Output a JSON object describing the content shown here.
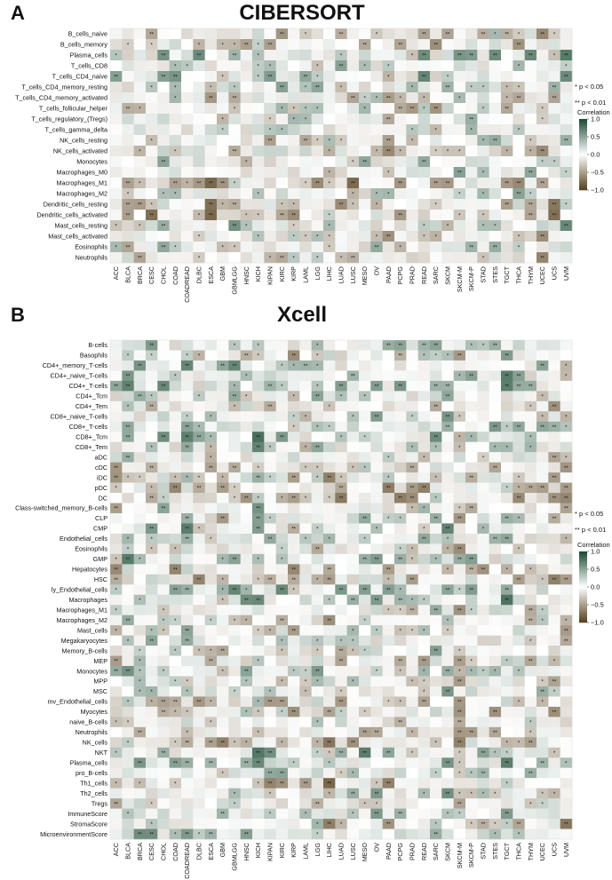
{
  "chart_data": [
    {
      "type": "heatmap",
      "panel": "A",
      "title": "CIBERSORT",
      "legend_title": "Correlation",
      "legend_ticks": [
        "1.0",
        "0.5",
        "0.0",
        "−0.5",
        "−1.0"
      ],
      "color_range": [
        -1.0,
        1.0
      ],
      "colors": {
        "positive": "#1f4d36",
        "neutral": "#ffffff",
        "negative": "#5a4422"
      },
      "notes": [
        "* p < 0.05",
        "** p < 0.01"
      ],
      "rows": [
        "B_cells_naive",
        "B_cells_memory",
        "Plasma_cells",
        "T_cells_CD8",
        "T_cells_CD4_naive",
        "T_cells_CD4_memory_resting",
        "T_cells_CD4_memory_activated",
        "T_cells_follicular_helper",
        "T_cells_regulatory_(Tregs)",
        "T_cells_gamma_delta",
        "NK_cells_resting",
        "NK_cells_activated",
        "Monocytes",
        "Macrophages_M0",
        "Macrophages_M1",
        "Macrophages_M2",
        "Dendritic_cells_resting",
        "Dendritic_cells_activated",
        "Mast_cells_resting",
        "Mast_cells_activated",
        "Eosinophils",
        "Neutrophils"
      ],
      "columns": [
        "ACC",
        "BLCA",
        "BRCA",
        "CESC",
        "CHOL",
        "COAD",
        "COADREAD",
        "DLBC",
        "ESCA",
        "GBM",
        "GBMLGG",
        "HNSC",
        "KICH",
        "KIPAN",
        "KIRC",
        "KIRP",
        "LAML",
        "LGG",
        "LIHC",
        "LUAD",
        "LUSC",
        "MESO",
        "OV",
        "PAAD",
        "PCPG",
        "PRAD",
        "READ",
        "SARC",
        "SKCM",
        "SKCM-M",
        "SKCM-P",
        "STAD",
        "STES",
        "TGCT",
        "THCA",
        "THYM",
        "UCEC",
        "UCS",
        "UVM"
      ],
      "seed": 11
    },
    {
      "type": "heatmap",
      "panel": "B",
      "title": "Xcell",
      "legend_title": "Correlation",
      "legend_ticks": [
        "1.0",
        "0.5",
        "0.0",
        "−0.5",
        "−1.0"
      ],
      "color_range": [
        -1.0,
        1.0
      ],
      "colors": {
        "positive": "#1f4d36",
        "neutral": "#ffffff",
        "negative": "#5a4422"
      },
      "notes": [
        "* p < 0.05",
        "** p < 0.01"
      ],
      "rows": [
        "B-cells",
        "Basophils",
        "CD4+_memory_T-cells",
        "CD4+_naive_T-cells",
        "CD4+_T-cells",
        "CD4+_Tcm",
        "CD4+_Tem",
        "CD8+_naive_T-cells",
        "CD8+_T-cells",
        "CD8+_Tcm",
        "CD8+_Tem",
        "aDC",
        "cDC",
        "iDC",
        "pDC",
        "DC",
        "Class-switched_memory_B-cells",
        "CLP",
        "CMP",
        "Endothelial_cells",
        "Eosinophils",
        "GMP",
        "Hepatocytes",
        "HSC",
        "ly_Endothelial_cells",
        "Macrophages",
        "Macrophages_M1",
        "Macrophages_M2",
        "Mast_cells",
        "Megakaryocytes",
        "Memory_B-cells",
        "MEP",
        "Monocytes",
        "MPP",
        "MSC",
        "mv_Endothelial_cells",
        "Myocytes",
        "naive_B-cells",
        "Neutrophils",
        "NK_cells",
        "NKT",
        "Plasma_cells",
        "pro_B-cells",
        "Th1_cells",
        "Th2_cells",
        "Tregs",
        "ImmuneScore",
        "StromaScore",
        "MicroenvironmentScore"
      ],
      "columns": [
        "ACC",
        "BLCA",
        "BRCA",
        "CESC",
        "CHOL",
        "COAD",
        "COADREAD",
        "DLBC",
        "ESCA",
        "GBM",
        "GBMLGG",
        "HNSC",
        "KICH",
        "KIPAN",
        "KIRC",
        "KIRP",
        "LAML",
        "LGG",
        "LIHC",
        "LUAD",
        "LUSC",
        "MESO",
        "OV",
        "PAAD",
        "PCPG",
        "PRAD",
        "READ",
        "SARC",
        "SKCM",
        "SKCM-M",
        "SKCM-P",
        "STAD",
        "STES",
        "TGCT",
        "THCA",
        "THYM",
        "UCEC",
        "UCS",
        "UVM"
      ],
      "seed": 29
    }
  ]
}
